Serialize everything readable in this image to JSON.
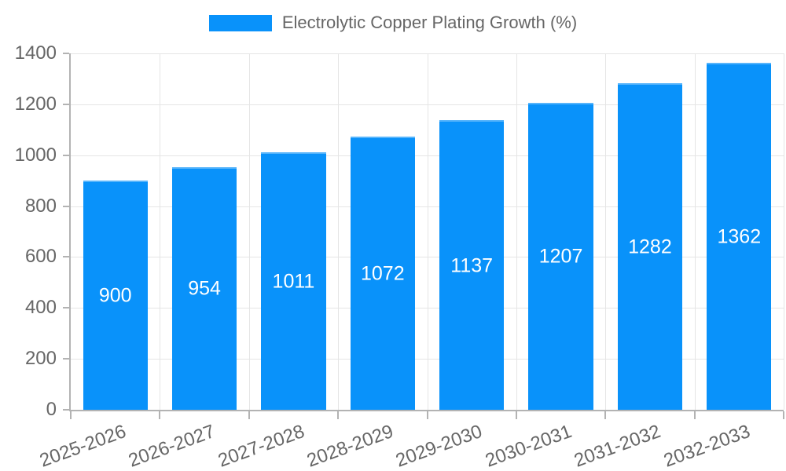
{
  "legend": {
    "label": "Electrolytic Copper Plating Growth (%)"
  },
  "chart_data": {
    "type": "bar",
    "title": "Electrolytic Copper Plating Growth (%)",
    "categories": [
      "2025-2026",
      "2026-2027",
      "2027-2028",
      "2028-2029",
      "2029-2030",
      "2030-2031",
      "2031-2032",
      "2032-2033"
    ],
    "values": [
      900,
      954,
      1011,
      1072,
      1137,
      1207,
      1282,
      1362
    ],
    "value_labels": [
      "900",
      "954",
      "1011",
      "1072",
      "1137",
      "1207",
      "1282",
      "1362"
    ],
    "xlabel": "",
    "ylabel": "",
    "ylim": [
      0,
      1400
    ],
    "ytick_step": 200,
    "yticks": [
      "0",
      "200",
      "400",
      "600",
      "800",
      "1000",
      "1200",
      "1400"
    ],
    "legend_position": "top-center",
    "grid": true,
    "x_label_rotation_deg": 20,
    "bar_width_fraction": 0.725,
    "colors": {
      "bar": "#0992fa",
      "bar_border": "#56b4fb",
      "value_label": "#ffffff",
      "axis_line": "#b3b3b3",
      "gridline": "#e5e5e5",
      "tick_text": "#666666",
      "legend_text": "#666666",
      "background": "#ffffff"
    }
  }
}
